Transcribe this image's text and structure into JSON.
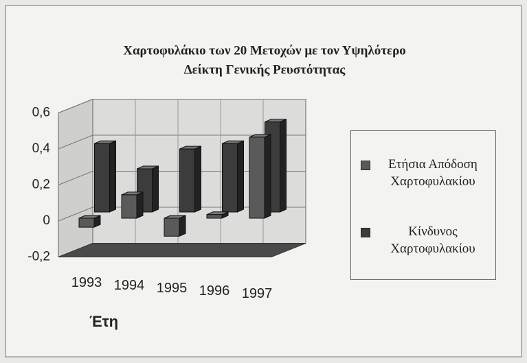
{
  "chart_data": {
    "type": "bar3d",
    "title": [
      "Χαρτοφυλάκιο των 20 Μετοχών με τον Υψηλότερο",
      "Δείκτη Γενικής Ρευστότητας"
    ],
    "x_label": "Έτη",
    "categories": [
      "1993",
      "1994",
      "1995",
      "1996",
      "1997"
    ],
    "series": [
      {
        "name": "Ετήσια Απόδοση Χαρτοφυλακίου",
        "color": "#5a5a5a",
        "values": [
          -0.05,
          0.13,
          -0.1,
          0.02,
          0.45
        ]
      },
      {
        "name": "Κίνδυνος Χαρτοφυλακίου",
        "color": "#3c3c3c",
        "values": [
          0.38,
          0.24,
          0.35,
          0.38,
          0.5
        ]
      }
    ],
    "ylim": [
      -0.2,
      0.6
    ],
    "yticks": [
      {
        "value": -0.2,
        "label": "-0,2"
      },
      0,
      {
        "value": 0.2,
        "label": "0,2"
      },
      {
        "value": 0.4,
        "label": "0,4"
      },
      {
        "value": 0.6,
        "label": "0,6"
      }
    ],
    "grid": true,
    "legend": "right"
  }
}
